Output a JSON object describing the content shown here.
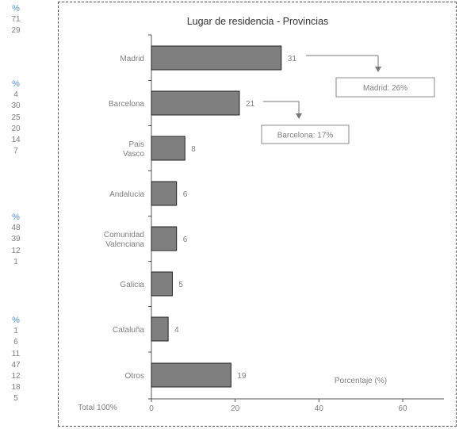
{
  "left_column": {
    "groups": [
      {
        "header": "%",
        "values": [
          "71",
          "29"
        ]
      },
      {
        "header": "%",
        "values": [
          "4",
          "30",
          "25",
          "20",
          "14",
          "7"
        ]
      },
      {
        "header": "%",
        "values": [
          "48",
          "39",
          "12",
          "1"
        ]
      },
      {
        "header": "%",
        "values": [
          "1",
          "6",
          "11",
          "47",
          "12",
          "18",
          "5"
        ]
      }
    ]
  },
  "chart_data": {
    "type": "bar",
    "orientation": "horizontal",
    "title": "Lugar de residencia - Provincias",
    "xlabel": "Porcentaje (%)",
    "total_label": "Total 100%",
    "xlim": [
      0,
      70
    ],
    "xticks": [
      "0",
      "20",
      "40",
      "60"
    ],
    "categories": [
      "Madrid",
      "Barcelona",
      "Pais Vasco",
      "Andalucia",
      "Comunidad Valenciana",
      "Galicia",
      "Cataluña",
      "Otros"
    ],
    "values": [
      31,
      21,
      8,
      6,
      6,
      5,
      4,
      19
    ],
    "bar_color": "#7f7f7f",
    "annotations": [
      {
        "category": "Madrid",
        "text": "Madrid: 26%"
      },
      {
        "category": "Barcelona",
        "text": "Barcelona: 17%"
      }
    ]
  }
}
